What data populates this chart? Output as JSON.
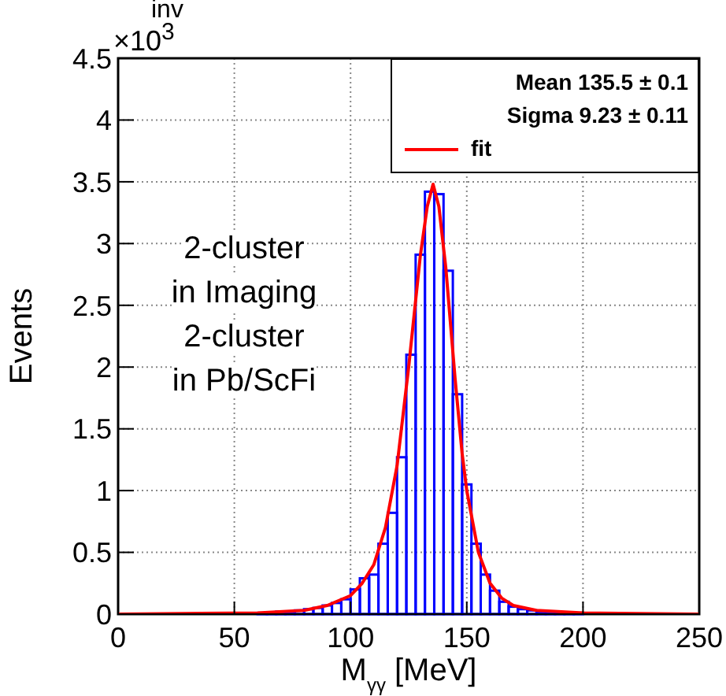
{
  "chart_data": {
    "type": "histogram",
    "title": "inv",
    "xlabel": "M$_{γγ}$ [MeV]",
    "ylabel": "Events",
    "annotations": [
      "×10$^{3}$",
      "Mean 135.5 ± 0.1",
      "Sigma 9.23 ± 0.11",
      "2-cluster",
      "in Imaging",
      "2-cluster",
      "in Pb/ScFi"
    ],
    "bins": [
      60,
      64,
      68,
      72,
      76,
      80,
      84,
      88,
      92,
      96,
      100,
      104,
      108,
      112,
      116,
      120,
      124,
      128,
      132,
      136,
      140,
      144,
      148,
      152,
      156,
      160,
      164,
      168,
      172,
      176,
      180,
      184,
      188,
      192,
      196,
      200
    ],
    "values": [
      0.01,
      0.01,
      0.02,
      0.02,
      0.03,
      0.04,
      0.05,
      0.07,
      0.09,
      0.12,
      0.2,
      0.29,
      0.32,
      0.57,
      0.82,
      1.27,
      2.1,
      2.91,
      3.42,
      3.4,
      2.78,
      1.78,
      1.05,
      0.57,
      0.32,
      0.19,
      0.1,
      0.06,
      0.04,
      0.03,
      0.02,
      0.02,
      0.01,
      0.01,
      0.01
    ],
    "color": "#0000ff",
    "series": [
      {
        "type": "line",
        "name": "fit",
        "color": "#ff0000",
        "x": [
          0,
          60,
          80,
          90,
          100,
          105,
          110,
          115,
          120,
          125,
          130,
          133,
          135.5,
          138,
          141,
          145,
          148,
          150,
          155,
          160,
          165,
          170,
          180,
          200,
          250
        ],
        "values": [
          0,
          0.01,
          0.03,
          0.07,
          0.15,
          0.25,
          0.4,
          0.7,
          1.2,
          2.0,
          2.9,
          3.3,
          3.48,
          3.3,
          2.8,
          1.9,
          1.3,
          1.0,
          0.5,
          0.25,
          0.13,
          0.07,
          0.03,
          0.01,
          0
        ]
      }
    ],
    "xlim": [
      0,
      250
    ],
    "xticks": [
      0,
      50,
      100,
      150,
      200,
      250
    ],
    "ylim": [
      0,
      4.5
    ],
    "yticks": [
      0,
      0.5,
      1,
      1.5,
      2,
      2.5,
      3,
      3.5,
      4,
      4.5
    ],
    "grid": true,
    "legend": "top right"
  }
}
